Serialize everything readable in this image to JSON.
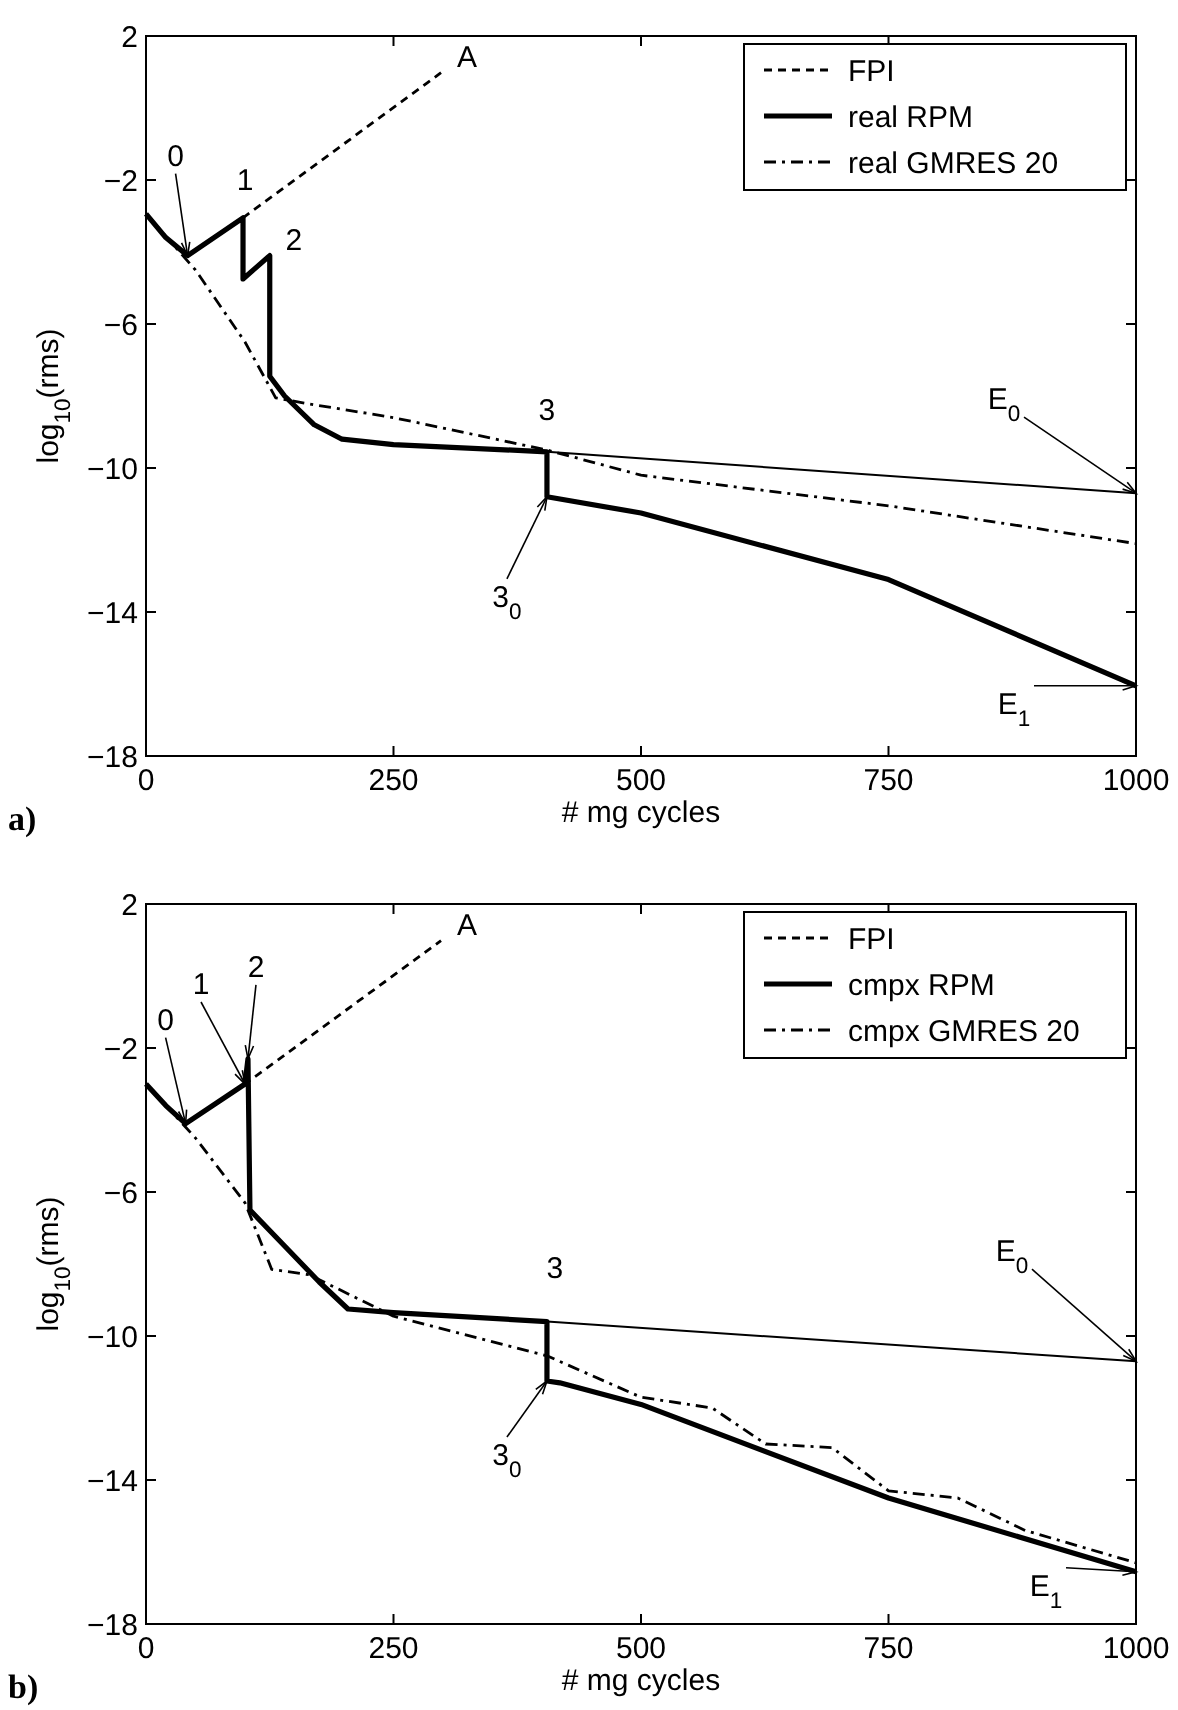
{
  "chart_data": [
    {
      "type": "line",
      "xlabel": "# mg cycles",
      "ylabel": "log$_{10}$(rms)",
      "xlim": [
        0,
        1000
      ],
      "ylim": [
        -18,
        2
      ],
      "xticks": [
        0,
        250,
        500,
        750,
        1000
      ],
      "yticks": [
        2,
        -2,
        -6,
        -10,
        -14,
        -18
      ],
      "grid": false,
      "legend": "top right",
      "marker": "none",
      "series": [
        {
          "name": "FPI",
          "color": "#000000",
          "line_style": "dashed",
          "x": [
            0,
            20,
            42,
            98,
            298
          ],
          "values": [
            -2.94,
            -3.6,
            -4.1,
            -3.05,
            0.98
          ]
        },
        {
          "name": "real RPM",
          "color": "#000000",
          "line_style": "solid",
          "x": [
            0,
            20,
            42,
            98,
            98,
            125,
            125,
            140,
            170,
            198,
            250,
            405,
            405,
            500,
            750,
            1000
          ],
          "values": [
            -2.94,
            -3.6,
            -4.1,
            -3.05,
            -4.75,
            -4.1,
            -7.45,
            -8.0,
            -8.8,
            -9.2,
            -9.35,
            -9.55,
            -10.8,
            -11.25,
            -13.1,
            -16.05
          ]
        },
        {
          "name": "real GMRES 20",
          "color": "#000000",
          "line_style": "dashdot",
          "x": [
            0,
            50,
            100,
            131,
            160,
            250,
            405,
            500,
            750,
            1000
          ],
          "values": [
            -2.94,
            -4.5,
            -6.5,
            -8.05,
            -8.2,
            -8.6,
            -9.5,
            -10.2,
            -11.05,
            -12.1
          ]
        },
        {
          "color": "#000000",
          "line_style": "solid",
          "x": [
            405,
            1000
          ],
          "values": [
            -9.55,
            -10.7
          ]
        }
      ],
      "annotations": [
        {
          "text": "0",
          "x": 42,
          "y": -4.1
        },
        {
          "text": "1",
          "x": 98,
          "y": -3.05
        },
        {
          "text": "2",
          "x": 125,
          "y": -4.1
        },
        {
          "text": "3",
          "x": 405,
          "y": -9.55
        },
        {
          "text": "3$_{0}$",
          "x": 405,
          "y": -10.8
        },
        {
          "text": "A",
          "x": 298,
          "y": 0.98
        },
        {
          "text": "E$_{0}$",
          "x": 1000,
          "y": -10.7
        },
        {
          "text": "E$_{1}$",
          "x": 1000,
          "y": -16.05
        },
        "a)"
      ]
    },
    {
      "type": "line",
      "xlabel": "# mg cycles",
      "ylabel": "log$_{10}$(rms)",
      "xlim": [
        0,
        1000
      ],
      "ylim": [
        -18,
        2
      ],
      "xticks": [
        0,
        250,
        500,
        750,
        1000
      ],
      "yticks": [
        2,
        -2,
        -6,
        -10,
        -14,
        -18
      ],
      "grid": false,
      "legend": "top right",
      "marker": "none",
      "series": [
        {
          "name": "FPI",
          "color": "#000000",
          "line_style": "dashed",
          "x": [
            0,
            20,
            40,
            100,
            298
          ],
          "values": [
            -3.0,
            -3.6,
            -4.1,
            -3.0,
            0.98
          ]
        },
        {
          "name": "cmpx RPM",
          "color": "#000000",
          "line_style": "solid",
          "x": [
            0,
            20,
            40,
            100,
            103,
            105,
            140,
            175,
            204,
            250,
            405,
            405,
            418,
            500,
            750,
            1000
          ],
          "values": [
            -3.0,
            -3.6,
            -4.1,
            -3.0,
            -2.3,
            -6.5,
            -7.5,
            -8.5,
            -9.25,
            -9.35,
            -9.6,
            -11.25,
            -11.3,
            -11.9,
            -14.5,
            -16.55
          ]
        },
        {
          "name": "cmpx GMRES 20",
          "color": "#000000",
          "line_style": "dashdot",
          "x": [
            0,
            50,
            100,
            127,
            165,
            250,
            405,
            500,
            572,
            626,
            693,
            750,
            820,
            888,
            1000
          ],
          "values": [
            -3.0,
            -4.5,
            -6.3,
            -8.15,
            -8.3,
            -9.45,
            -10.55,
            -11.7,
            -12.0,
            -13.0,
            -13.1,
            -14.3,
            -14.5,
            -15.4,
            -16.3
          ]
        },
        {
          "color": "#000000",
          "line_style": "solid",
          "x": [
            405,
            1000
          ],
          "values": [
            -9.6,
            -10.7
          ]
        }
      ],
      "annotations": [
        {
          "text": "0",
          "x": 40,
          "y": -4.1
        },
        {
          "text": "1",
          "x": 100,
          "y": -3.0
        },
        {
          "text": "2",
          "x": 103,
          "y": -2.3
        },
        {
          "text": "3",
          "x": 405,
          "y": -9.6
        },
        {
          "text": "3$_{0}$",
          "x": 405,
          "y": -11.25
        },
        {
          "text": "A",
          "x": 298,
          "y": 0.98
        },
        {
          "text": "E$_{0}$",
          "x": 1000,
          "y": -10.7
        },
        {
          "text": "E$_{1}$",
          "x": 1000,
          "y": -16.55
        },
        "b)"
      ]
    }
  ]
}
